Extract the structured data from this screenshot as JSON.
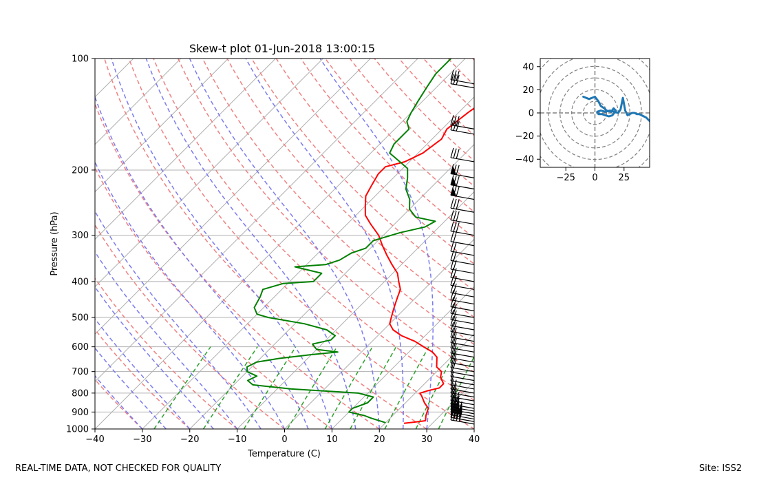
{
  "chart_data": [
    {
      "type": "line",
      "subtype": "skew-t log-p diagram",
      "title": "Skew-t plot 01-Jun-2018 13:00:15",
      "xlabel": "Temperature (C)",
      "ylabel": "Pressure (hPa)",
      "xlim": [
        -40,
        40
      ],
      "ylim": [
        1000,
        100
      ],
      "y_scale": "log",
      "x_ticks": [
        "−40",
        "−30",
        "−20",
        "−10",
        "0",
        "10",
        "20",
        "30",
        "40"
      ],
      "y_ticks": [
        "100",
        "200",
        "300",
        "400",
        "500",
        "600",
        "700",
        "800",
        "900",
        "1000"
      ],
      "grid": true,
      "colors": {
        "temperature": "#ff0000",
        "dewpoint": "#008000",
        "dry_adiabat": "#f08080",
        "moist_adiabat": "#7b7bef",
        "mixing_ratio": "#2ca02c",
        "isotherm": "#b0b0b0",
        "wind_barb": "#000000"
      },
      "series": [
        {
          "key": "temperature",
          "points": [
            [
              24,
              965
            ],
            [
              26,
              958
            ],
            [
              28,
              950
            ],
            [
              27,
              920
            ],
            [
              26,
              880
            ],
            [
              24,
              850
            ],
            [
              22,
              815
            ],
            [
              21,
              800
            ],
            [
              22,
              790
            ],
            [
              24,
              775
            ],
            [
              24,
              755
            ],
            [
              22,
              725
            ],
            [
              21,
              700
            ],
            [
              19,
              680
            ],
            [
              17,
              640
            ],
            [
              15,
              620
            ],
            [
              12,
              600
            ],
            [
              9,
              580
            ],
            [
              5,
              560
            ],
            [
              2,
              540
            ],
            [
              0,
              520
            ],
            [
              -1,
              500
            ],
            [
              -2,
              480
            ],
            [
              -3,
              460
            ],
            [
              -4,
              440
            ],
            [
              -5,
              420
            ],
            [
              -7,
              400
            ],
            [
              -9,
              380
            ],
            [
              -12,
              360
            ],
            [
              -15,
              340
            ],
            [
              -18,
              320
            ],
            [
              -21,
              300
            ],
            [
              -25,
              280
            ],
            [
              -28,
              265
            ],
            [
              -30,
              250
            ],
            [
              -32,
              235
            ],
            [
              -33,
              220
            ],
            [
              -34,
              205
            ],
            [
              -34,
              196
            ],
            [
              -31,
              190
            ],
            [
              -29,
              180
            ],
            [
              -28,
              165
            ],
            [
              -29,
              155
            ],
            [
              -28,
              140
            ],
            [
              -27,
              130
            ],
            [
              -29,
              120
            ],
            [
              -28,
              110
            ],
            [
              -28,
              100
            ]
          ]
        },
        {
          "key": "dewpoint",
          "points": [
            [
              20,
              962
            ],
            [
              19,
              955
            ],
            [
              16,
              935
            ],
            [
              14,
              920
            ],
            [
              10,
              900
            ],
            [
              10,
              880
            ],
            [
              12,
              850
            ],
            [
              12,
              820
            ],
            [
              8,
              800
            ],
            [
              -7,
              780
            ],
            [
              -16,
              760
            ],
            [
              -18,
              740
            ],
            [
              -17,
              720
            ],
            [
              -20,
              700
            ],
            [
              -21,
              680
            ],
            [
              -20,
              660
            ],
            [
              -16,
              645
            ],
            [
              -10,
              630
            ],
            [
              -5,
              620
            ],
            [
              -10,
              610
            ],
            [
              -12,
              590
            ],
            [
              -9,
              575
            ],
            [
              -9,
              560
            ],
            [
              -12,
              540
            ],
            [
              -18,
              520
            ],
            [
              -27,
              500
            ],
            [
              -30,
              490
            ],
            [
              -32,
              470
            ],
            [
              -33,
              440
            ],
            [
              -34,
              420
            ],
            [
              -31,
              405
            ],
            [
              -25,
              400
            ],
            [
              -25,
              380
            ],
            [
              -32,
              365
            ],
            [
              -26,
              360
            ],
            [
              -24,
              350
            ],
            [
              -23,
              335
            ],
            [
              -21,
              325
            ],
            [
              -21,
              310
            ],
            [
              -17,
              295
            ],
            [
              -13,
              285
            ],
            [
              -12,
              275
            ],
            [
              -17,
              268
            ],
            [
              -20,
              255
            ],
            [
              -22,
              240
            ],
            [
              -25,
              225
            ],
            [
              -27,
              210
            ],
            [
              -29,
              198
            ],
            [
              -32,
              190
            ],
            [
              -36,
              180
            ],
            [
              -37,
              170
            ],
            [
              -37,
              155
            ],
            [
              -39,
              148
            ],
            [
              -40,
              140
            ],
            [
              -41,
              130
            ],
            [
              -42,
              120
            ],
            [
              -43,
              110
            ],
            [
              -43,
              100
            ]
          ]
        }
      ],
      "wind_barbs": [
        {
          "p": 970,
          "barbs": 4
        },
        {
          "p": 955,
          "barbs": 4
        },
        {
          "p": 940,
          "barbs": 4
        },
        {
          "p": 925,
          "barbs": 4
        },
        {
          "p": 910,
          "barbs": 4
        },
        {
          "p": 895,
          "barbs": 3
        },
        {
          "p": 880,
          "barbs": 3
        },
        {
          "p": 860,
          "barbs": 3
        },
        {
          "p": 840,
          "barbs": 2
        },
        {
          "p": 820,
          "barbs": 2
        },
        {
          "p": 800,
          "barbs": 2
        },
        {
          "p": 780,
          "barbs": 1
        },
        {
          "p": 760,
          "barbs": 1
        },
        {
          "p": 740,
          "barbs": 1
        },
        {
          "p": 720,
          "barbs": 1
        },
        {
          "p": 700,
          "barbs": 2
        },
        {
          "p": 680,
          "barbs": 2
        },
        {
          "p": 660,
          "barbs": 2
        },
        {
          "p": 640,
          "barbs": 2
        },
        {
          "p": 620,
          "barbs": 2
        },
        {
          "p": 600,
          "barbs": 2
        },
        {
          "p": 580,
          "barbs": 2
        },
        {
          "p": 560,
          "barbs": 2
        },
        {
          "p": 540,
          "barbs": 2
        },
        {
          "p": 520,
          "barbs": 2
        },
        {
          "p": 500,
          "barbs": 2
        },
        {
          "p": 480,
          "barbs": 2
        },
        {
          "p": 460,
          "barbs": 2
        },
        {
          "p": 440,
          "barbs": 2
        },
        {
          "p": 420,
          "barbs": 2
        },
        {
          "p": 400,
          "barbs": 2
        },
        {
          "p": 380,
          "barbs": 2
        },
        {
          "p": 360,
          "barbs": 2
        },
        {
          "p": 340,
          "barbs": 2
        },
        {
          "p": 320,
          "barbs": 2
        },
        {
          "p": 300,
          "barbs": 3
        },
        {
          "p": 280,
          "barbs": 3
        },
        {
          "p": 260,
          "barbs": 3
        },
        {
          "p": 240,
          "barbs": 3,
          "flag": true
        },
        {
          "p": 225,
          "barbs": 3,
          "flag": true
        },
        {
          "p": 210,
          "barbs": 3,
          "flag": true
        },
        {
          "p": 190,
          "barbs": 3
        },
        {
          "p": 160,
          "barbs": 3
        },
        {
          "p": 155,
          "barbs": 3
        },
        {
          "p": 120,
          "barbs": 3
        },
        {
          "p": 117,
          "barbs": 3
        }
      ]
    },
    {
      "type": "line",
      "subtype": "hodograph",
      "xlim": [
        -47,
        47
      ],
      "ylim": [
        -47,
        47
      ],
      "x_ticks": [
        "−25",
        "0",
        "25"
      ],
      "y_ticks": [
        "40",
        "20",
        "0",
        "−20",
        "−40"
      ],
      "rings": [
        10,
        20,
        30,
        40,
        50,
        60
      ],
      "grid": true,
      "color": "#1f77b4",
      "points": [
        [
          -10,
          14
        ],
        [
          -5,
          12
        ],
        [
          0,
          14
        ],
        [
          3,
          10
        ],
        [
          5,
          6
        ],
        [
          8,
          4
        ],
        [
          10,
          2
        ],
        [
          14,
          1
        ],
        [
          16,
          4
        ],
        [
          18,
          2
        ],
        [
          15,
          -2
        ],
        [
          12,
          -3
        ],
        [
          9,
          -2
        ],
        [
          6,
          -1
        ],
        [
          3,
          -1
        ],
        [
          2,
          1
        ],
        [
          5,
          2
        ],
        [
          9,
          1
        ],
        [
          13,
          2
        ],
        [
          17,
          1
        ],
        [
          20,
          0
        ],
        [
          22,
          3
        ],
        [
          24,
          13
        ],
        [
          26,
          2
        ],
        [
          28,
          -2
        ],
        [
          30,
          -1
        ],
        [
          32,
          0
        ],
        [
          34,
          0
        ],
        [
          36,
          -1
        ],
        [
          38,
          -1
        ],
        [
          40,
          -2
        ],
        [
          42,
          -3
        ],
        [
          44,
          -4
        ],
        [
          46,
          -6
        ],
        [
          48,
          -8
        ]
      ]
    }
  ],
  "footer": {
    "left": "REAL-TIME DATA, NOT CHECKED FOR QUALITY",
    "right": "Site: ISS2"
  }
}
